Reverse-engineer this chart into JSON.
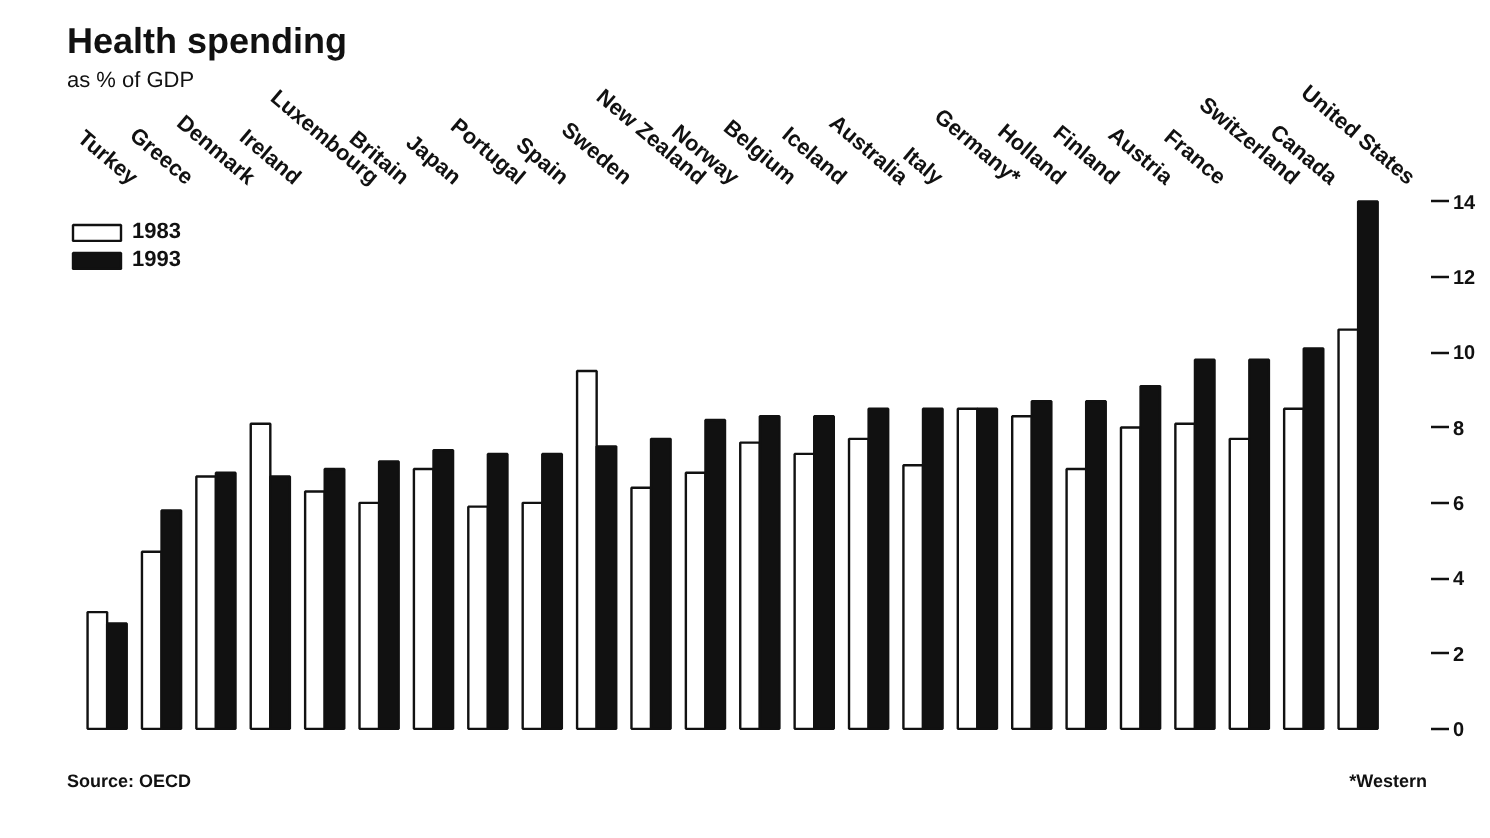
{
  "chart_data": {
    "type": "bar",
    "title": "Health spending",
    "subtitle": "as % of GDP",
    "categories": [
      "Turkey",
      "Greece",
      "Denmark",
      "Ireland",
      "Luxembourg",
      "Britain",
      "Japan",
      "Portugal",
      "Spain",
      "Sweden",
      "New Zealand",
      "Norway",
      "Belgium",
      "Iceland",
      "Australia",
      "Italy",
      "Germany*",
      "Holland",
      "Finland",
      "Austria",
      "France",
      "Switzerland",
      "Canada",
      "United States"
    ],
    "series": [
      {
        "name": "1983",
        "color": "#ffffff",
        "values": [
          3.1,
          4.7,
          6.7,
          8.1,
          6.3,
          6.0,
          6.9,
          5.9,
          6.0,
          9.5,
          6.4,
          6.8,
          7.6,
          7.3,
          7.7,
          7.0,
          8.5,
          8.3,
          6.9,
          8.0,
          8.1,
          7.7,
          8.5,
          10.6
        ]
      },
      {
        "name": "1993",
        "color": "#111111",
        "values": [
          2.8,
          5.8,
          6.8,
          6.7,
          6.9,
          7.1,
          7.4,
          7.3,
          7.3,
          7.5,
          7.7,
          8.2,
          8.3,
          8.3,
          8.5,
          8.5,
          8.5,
          8.7,
          8.7,
          9.1,
          9.8,
          9.8,
          10.1,
          14.0
        ]
      }
    ],
    "ylim": [
      -2.5,
      18.9
    ],
    "yticks": [
      0,
      2,
      4,
      6,
      8,
      10,
      12,
      14
    ],
    "grid": false,
    "legend": "top left",
    "annotations": [
      "Source: OECD",
      "*Western"
    ]
  }
}
